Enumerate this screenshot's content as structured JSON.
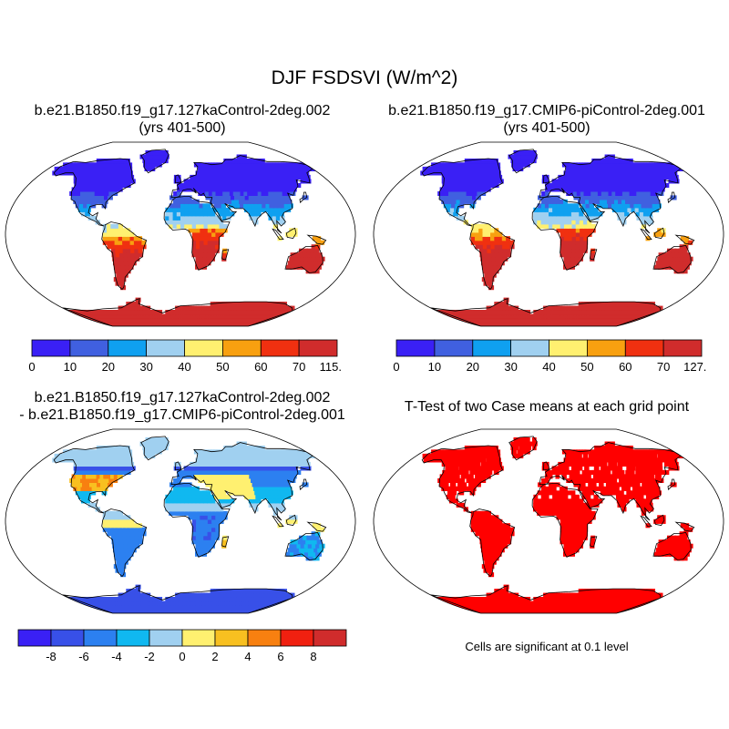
{
  "figure": {
    "title": "DJF FSDSVI (W/m^2)"
  },
  "panels": [
    {
      "title_lines": [
        "b.e21.B1850.f19_g17.127kaControl-2deg.002",
        "(yrs 401-500)"
      ],
      "field": "mean",
      "scale": 1.05
    },
    {
      "title_lines": [
        "b.e21.B1850.f19_g17.CMIP6-piControl-2deg.001",
        "(yrs 401-500)"
      ],
      "field": "mean",
      "scale": 1.12
    },
    {
      "title_lines": [
        "b.e21.B1850.f19_g17.127kaControl-2deg.002",
        "- b.e21.B1850.f19_g17.CMIP6-piControl-2deg.001"
      ],
      "field": "diff"
    },
    {
      "title_lines": [
        "T-Test of two Case means at each grid point"
      ],
      "field": "ttest"
    }
  ],
  "colorbars": [
    {
      "labels": [
        "0",
        "10",
        "20",
        "30",
        "40",
        "50",
        "60",
        "70",
        "115.04"
      ],
      "colors": [
        "#3a20f5",
        "#4060e0",
        "#0fa0f0",
        "#a0d0f0",
        "#fff070",
        "#f8a010",
        "#f03010",
        "#d02c2c"
      ]
    },
    {
      "labels": [
        "0",
        "10",
        "20",
        "30",
        "40",
        "50",
        "60",
        "70",
        "127.06"
      ],
      "colors": [
        "#3a20f5",
        "#4060e0",
        "#0fa0f0",
        "#a0d0f0",
        "#fff070",
        "#f8a010",
        "#f03010",
        "#d02c2c"
      ]
    },
    {
      "labels": [
        "-8",
        "-6",
        "-4",
        "-2",
        "0",
        "2",
        "4",
        "6",
        "8"
      ],
      "colors": [
        "#3a20f5",
        "#3850e8",
        "#2c80f0",
        "#10b8f0",
        "#a0d0f0",
        "#fff070",
        "#f8c020",
        "#f88010",
        "#f02010",
        "#d02c2c"
      ]
    }
  ],
  "significance_note": "Cells are significant at 0.1 level",
  "significance_color": "#ff0000"
}
